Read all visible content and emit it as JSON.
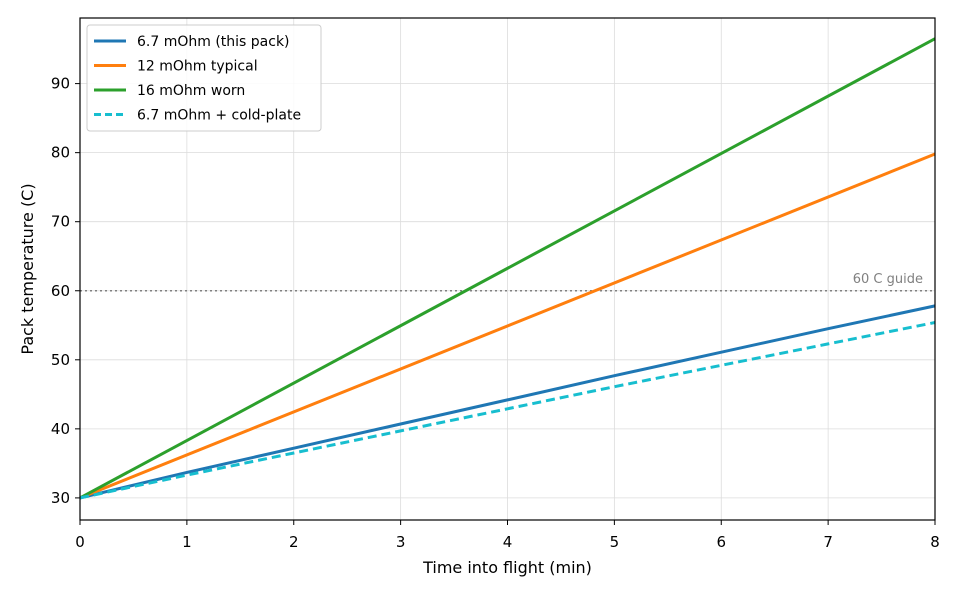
{
  "chart_data": {
    "type": "line",
    "title": "",
    "xlabel": "Time into flight (min)",
    "ylabel": "Pack temperature (C)",
    "xlim": [
      0,
      8
    ],
    "ylim": [
      26.8,
      99.5
    ],
    "x_ticks": [
      0,
      1,
      2,
      3,
      4,
      5,
      6,
      7,
      8
    ],
    "y_ticks": [
      30,
      40,
      50,
      60,
      70,
      80,
      90
    ],
    "grid": true,
    "legend_position": "top-left",
    "series": [
      {
        "name": "6.7 mOhm (this pack)",
        "color": "#1f77b4",
        "style": "solid",
        "x": [
          0,
          1,
          2,
          3,
          4,
          5,
          6,
          7,
          8
        ],
        "y": [
          30,
          33.7,
          37.2,
          40.7,
          44.2,
          47.7,
          51.1,
          54.5,
          57.8
        ]
      },
      {
        "name": "12 mOhm typical",
        "color": "#ff7f0e",
        "style": "solid",
        "x": [
          0,
          8
        ],
        "y": [
          30,
          79.8
        ]
      },
      {
        "name": "16 mOhm worn",
        "color": "#2ca02c",
        "style": "solid",
        "x": [
          0,
          8
        ],
        "y": [
          30,
          96.5
        ]
      },
      {
        "name": "6.7 mOhm + cold-plate",
        "color": "#17becf",
        "style": "dashed",
        "x": [
          0,
          1,
          2,
          3,
          4,
          5,
          6,
          7,
          8
        ],
        "y": [
          30,
          33.3,
          36.5,
          39.7,
          42.9,
          46.1,
          49.2,
          52.3,
          55.4
        ]
      }
    ],
    "reference_lines": [
      {
        "y": 60,
        "label": "60 C guide",
        "color": "#808080",
        "style": "dotted"
      }
    ]
  }
}
